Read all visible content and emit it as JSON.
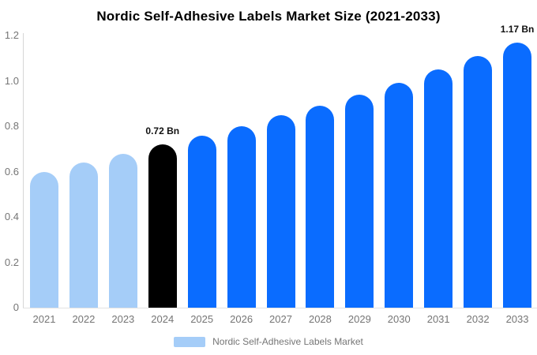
{
  "chart_data": {
    "type": "bar",
    "title": "Nordic Self-Adhesive Labels Market Size (2021-2033)",
    "categories": [
      "2021",
      "2022",
      "2023",
      "2024",
      "2025",
      "2026",
      "2027",
      "2028",
      "2029",
      "2030",
      "2031",
      "2032",
      "2033"
    ],
    "values": [
      0.6,
      0.64,
      0.68,
      0.72,
      0.76,
      0.8,
      0.85,
      0.89,
      0.94,
      0.99,
      1.05,
      1.11,
      1.17
    ],
    "unit": "Bn",
    "ylim": [
      0,
      1.2
    ],
    "y_tick_values": [
      0,
      0.2,
      0.4,
      0.6,
      0.8,
      1.0,
      1.2
    ],
    "y_tick_labels": [
      "0",
      "0.2",
      "0.4",
      "0.6",
      "0.8",
      "1.0",
      "1.2"
    ],
    "grid": false,
    "legend": {
      "label": "Nordic Self-Adhesive Labels Market",
      "position": "bottom"
    },
    "annotations": [
      {
        "category": "2024",
        "index": 3,
        "text": "0.72 Bn"
      },
      {
        "category": "2033",
        "index": 12,
        "text": "1.17 Bn"
      }
    ],
    "bar_colors": [
      "#A5CDF8",
      "#A5CDF8",
      "#A5CDF8",
      "#000000",
      "#0A6CFF",
      "#0A6CFF",
      "#0A6CFF",
      "#0A6CFF",
      "#0A6CFF",
      "#0A6CFF",
      "#0A6CFF",
      "#0A6CFF",
      "#0A6CFF"
    ],
    "colors": {
      "historical_bar": "#A5CDF8",
      "highlight_bar": "#000000",
      "forecast_bar": "#0A6CFF",
      "y_axis_line": "#D6D6D6",
      "x_axis_line": "#E3E3E3",
      "tick_text": "#757575",
      "annotation_text": "#111111",
      "title_text": "#000000",
      "background": "#FFFFFF",
      "legend_swatch": "#A5CDF8"
    }
  }
}
